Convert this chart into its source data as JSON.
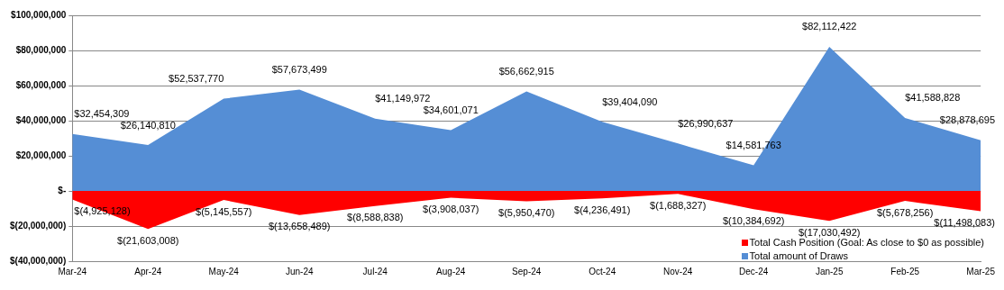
{
  "chart_data": {
    "type": "area",
    "categories": [
      "Mar-24",
      "Apr-24",
      "May-24",
      "Jun-24",
      "Jul-24",
      "Aug-24",
      "Sep-24",
      "Oct-24",
      "Nov-24",
      "Dec-24",
      "Jan-25",
      "Feb-25",
      "Mar-25"
    ],
    "series": [
      {
        "name": "Total Cash Position (Goal: As close to $0 as possible)",
        "color": "#ff0000",
        "values": [
          -4925128,
          -21603008,
          -5145557,
          -13658489,
          -8588838,
          -3908037,
          -5950470,
          -4236491,
          -1688327,
          -10384692,
          -17030492,
          -5678256,
          -11498083
        ],
        "value_labels": [
          "$(4,925,128)",
          "$(21,603,008)",
          "$(5,145,557)",
          "$(13,658,489)",
          "$(8,588,838)",
          "$(3,908,037)",
          "$(5,950,470)",
          "$(4,236,491)",
          "$(1,688,327)",
          "$(10,384,692)",
          "$(17,030,492)",
          "$(5,678,256)",
          "$(11,498,083)"
        ]
      },
      {
        "name": "Total amount of Draws",
        "color": "#558ed5",
        "values": [
          32454309,
          26140810,
          52537770,
          57673499,
          41149972,
          34601071,
          56662915,
          39404090,
          26990637,
          14581763,
          82112422,
          41588828,
          28878695
        ],
        "value_labels": [
          "$32,454,309",
          "$26,140,810",
          "$52,537,770",
          "$57,673,499",
          "$41,149,972",
          "$34,601,071",
          "$56,662,915",
          "$39,404,090",
          "$26,990,637",
          "$14,581,763",
          "$82,112,422",
          "$41,588,828",
          "$28,878,695"
        ]
      }
    ],
    "ylim": [
      -40000000,
      100000000
    ],
    "yticks": [
      {
        "value": -40000000,
        "label": "$(40,000,000)"
      },
      {
        "value": -20000000,
        "label": "$(20,000,000)"
      },
      {
        "value": 0,
        "label": "$-"
      },
      {
        "value": 20000000,
        "label": "$20,000,000"
      },
      {
        "value": 40000000,
        "label": "$40,000,000"
      },
      {
        "value": 60000000,
        "label": "$60,000,000"
      },
      {
        "value": 80000000,
        "label": "$80,000,000"
      },
      {
        "value": 100000000,
        "label": "$100,000,000"
      }
    ],
    "grid": "y",
    "legend": "bottom right"
  }
}
